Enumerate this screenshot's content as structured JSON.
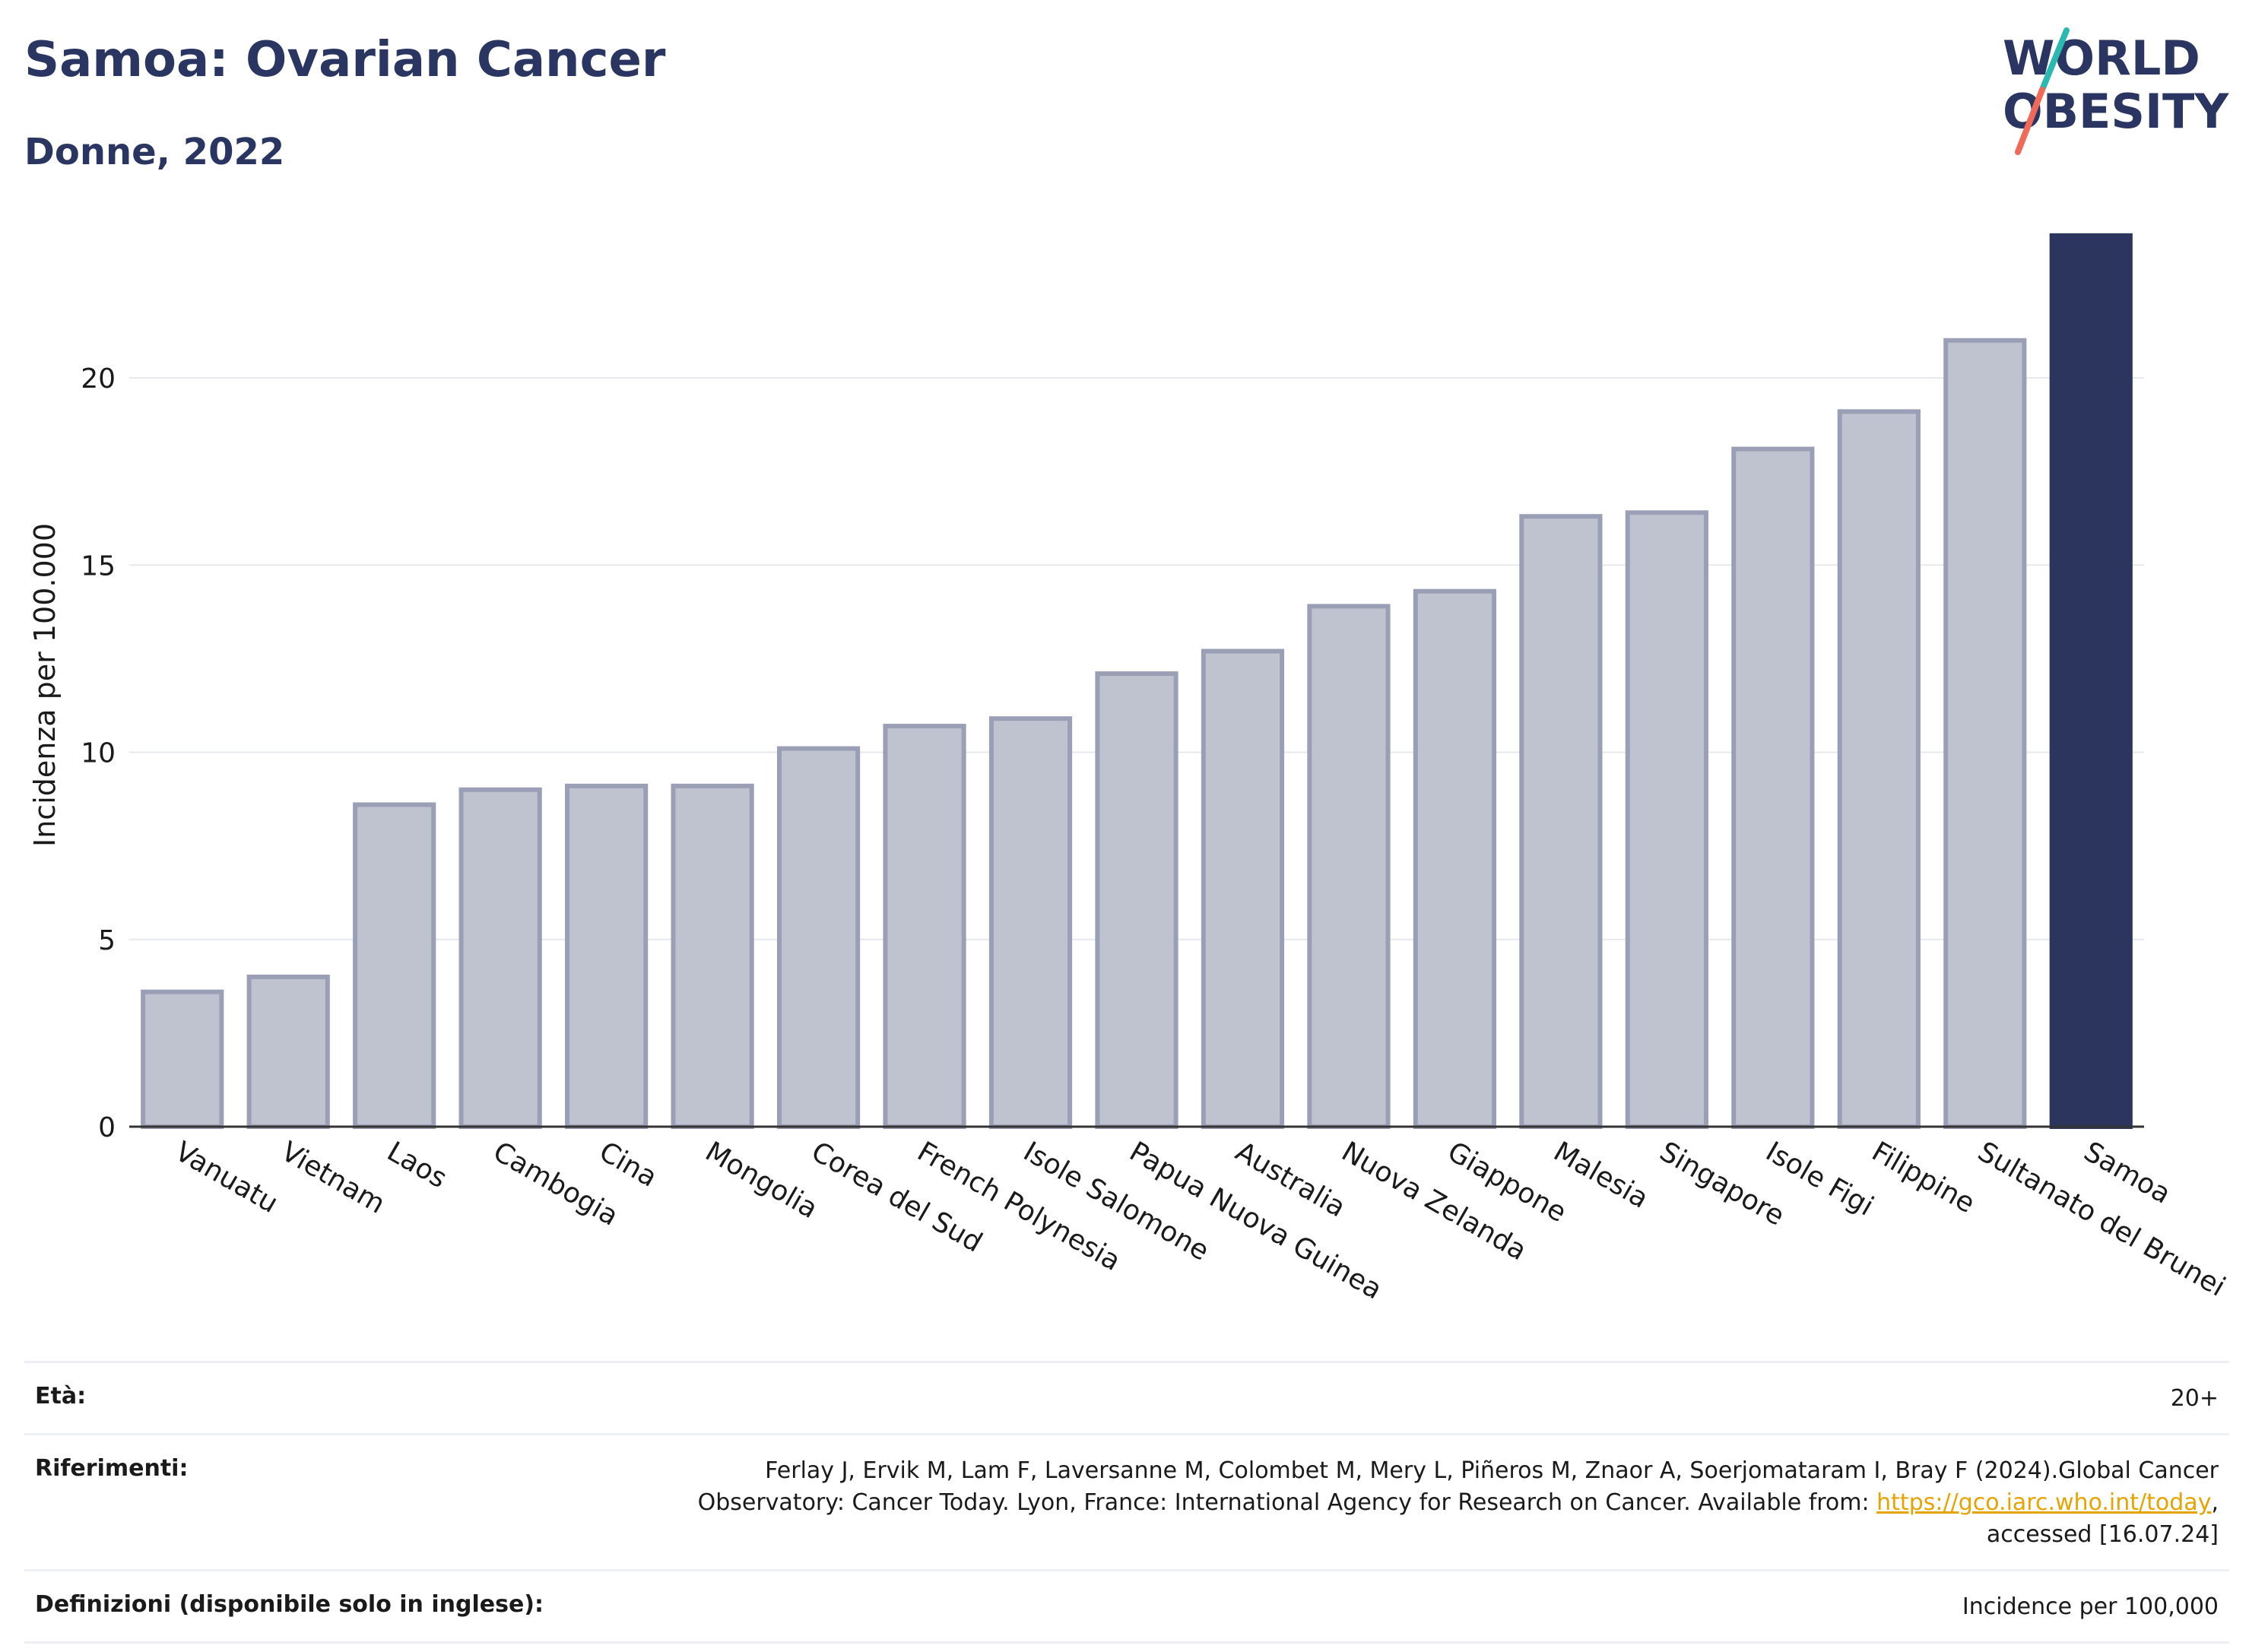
{
  "header": {
    "title": "Samoa: Ovarian Cancer",
    "subtitle": "Donne, 2022",
    "logo_line1": "WORLD",
    "logo_line2": "OBESITY"
  },
  "colors": {
    "title": "#2a3561",
    "bar_default": "#bfc3d0",
    "bar_default_edge": "#9a9fb6",
    "bar_highlight": "#2b355e",
    "logo_teal": "#2bb8b0",
    "logo_coral": "#f06a5a",
    "link": "#e6a400"
  },
  "chart_data": {
    "type": "bar",
    "title": "Samoa: Ovarian Cancer",
    "subtitle": "Donne, 2022",
    "ylabel": "Incidenza per 100.000",
    "xlabel": "",
    "ylim": [
      0,
      24
    ],
    "yticks": [
      0,
      5,
      10,
      15,
      20
    ],
    "grid": true,
    "highlight": "Samoa",
    "categories": [
      "Vanuatu",
      "Vietnam",
      "Laos",
      "Cambogia",
      "Cina",
      "Mongolia",
      "Corea del Sud",
      "French Polynesia",
      "Isole Salomone",
      "Papua Nuova Guinea",
      "Australia",
      "Nuova Zelanda",
      "Giappone",
      "Malesia",
      "Singapore",
      "Isole Figi",
      "Filippine",
      "Sultanato del Brunei",
      "Samoa"
    ],
    "values": [
      3.6,
      4.0,
      8.6,
      9.0,
      9.1,
      9.1,
      10.1,
      10.7,
      10.9,
      12.1,
      12.7,
      13.9,
      14.3,
      16.3,
      16.4,
      18.1,
      19.1,
      21.0,
      23.8
    ]
  },
  "meta": {
    "age_label": "Età:",
    "age_value": "20+",
    "refs_label": "Riferimenti:",
    "refs_text_1": "Ferlay J, Ervik M, Lam F, Laversanne M, Colombet M, Mery L, Piñeros M, Znaor A, Soerjomataram I, Bray F (2024).Global Cancer Observatory: Cancer Today. Lyon, France: International Agency for Research on Cancer. Available from: ",
    "refs_link": "https://gco.iarc.who.int/today",
    "refs_text_2": ", accessed [16.07.24]",
    "defs_label": "Definizioni (disponibile solo in inglese):",
    "defs_value": "Incidence per 100,000"
  }
}
